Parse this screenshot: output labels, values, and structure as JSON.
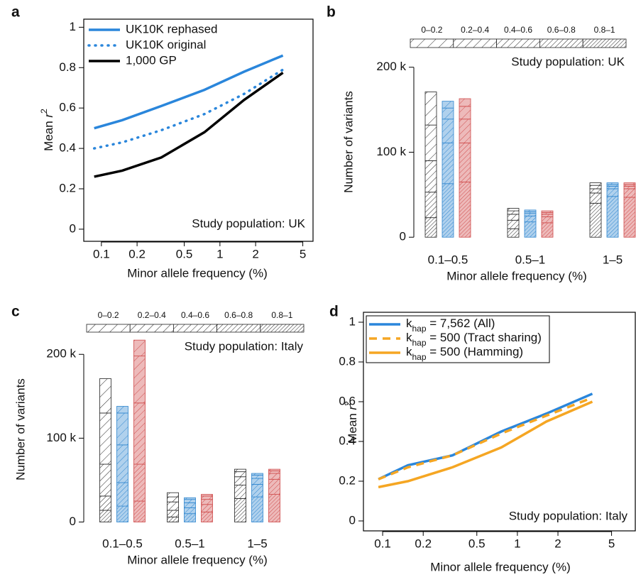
{
  "chart_data": [
    {
      "panel": "a",
      "type": "line",
      "log_x": true,
      "legend": "top-left",
      "xlabel": "Minor allele frequency (%)",
      "ylabel": [
        "Mean ",
        "r",
        "2"
      ],
      "annotation": "Study population: UK",
      "x": [
        0.087,
        0.15,
        0.32,
        0.74,
        1.6,
        3.4
      ],
      "xlim": [
        0.071,
        6.1
      ],
      "xticks": [
        0.1,
        0.2,
        0.5,
        1,
        2,
        5
      ],
      "ylim": [
        -0.06,
        1.04
      ],
      "yticks": [
        0,
        0.2,
        0.4,
        0.6,
        0.8,
        1
      ],
      "series": [
        {
          "name": "UK10K rephased",
          "color": "#2a86db",
          "style": "solid",
          "values": [
            0.5,
            0.54,
            0.61,
            0.69,
            0.78,
            0.86
          ]
        },
        {
          "name": "UK10K original",
          "color": "#2a86db",
          "style": "dotted",
          "values": [
            0.4,
            0.43,
            0.49,
            0.57,
            0.67,
            0.79
          ]
        },
        {
          "name": "1,000 GP",
          "color": "#000000",
          "style": "solid",
          "values": [
            0.26,
            0.29,
            0.355,
            0.48,
            0.64,
            0.775
          ]
        }
      ]
    },
    {
      "panel": "b",
      "type": "stacked_bar",
      "xlabel": "Minor allele frequency (%)",
      "ylabel": "Number of variants",
      "annotation": "Study population: UK",
      "categories": [
        "0.1–0.5",
        "0.5–1",
        "1–5"
      ],
      "group_colors": [
        "#222222",
        "#2f86cf",
        "#cf4a4a"
      ],
      "ylim": [
        -9000,
        229000
      ],
      "yticks": [
        0,
        {
          "value": 100000,
          "label": "100 k"
        },
        {
          "value": 200000,
          "label": "200 k"
        }
      ],
      "series": [
        {
          "name": "0–0.2",
          "values": [
            [
              39000,
              8000,
              9000
            ],
            [
              3000,
              2000,
              2000
            ],
            [
              3000,
              2000,
              2000
            ]
          ]
        },
        {
          "name": "0.2–0.4",
          "values": [
            [
              42000,
              13000,
              15000
            ],
            [
              4000,
              2000,
              2000
            ],
            [
              4000,
              2000,
              2000
            ]
          ]
        },
        {
          "name": "0.4–0.6",
          "values": [
            [
              37000,
              28000,
              28000
            ],
            [
              7000,
              3000,
              3000
            ],
            [
              5000,
              3000,
              3000
            ]
          ]
        },
        {
          "name": "0.6–0.8",
          "values": [
            [
              30000,
              48000,
              46000
            ],
            [
              10000,
              7000,
              7000
            ],
            [
              12000,
              9000,
              10000
            ]
          ]
        },
        {
          "name": "0.8–1",
          "values": [
            [
              23000,
              63000,
              65000
            ],
            [
              10000,
              18000,
              17000
            ],
            [
              40000,
              48000,
              47000
            ]
          ]
        }
      ]
    },
    {
      "panel": "c",
      "type": "stacked_bar",
      "xlabel": "Minor allele frequency (%)",
      "ylabel": "Number of variants",
      "annotation": "Study population: Italy",
      "categories": [
        "0.1–0.5",
        "0.5–1",
        "1–5"
      ],
      "group_colors": [
        "#222222",
        "#2f86cf",
        "#cf4a4a"
      ],
      "ylim": [
        -8000,
        229000
      ],
      "yticks": [
        0,
        {
          "value": 100000,
          "label": "100 k"
        },
        {
          "value": 200000,
          "label": "200 k"
        }
      ],
      "series": [
        {
          "name": "0–0.2",
          "values": [
            [
              41000,
              8000,
              19000
            ],
            [
              5000,
              2000,
              2000
            ],
            [
              3000,
              2000,
              2000
            ]
          ]
        },
        {
          "name": "0.2–0.4",
          "values": [
            [
              61000,
              38000,
              56000
            ],
            [
              6000,
              4000,
              4000
            ],
            [
              6000,
              4000,
              3000
            ]
          ]
        },
        {
          "name": "0.4–0.6",
          "values": [
            [
              38000,
              45000,
              73000
            ],
            [
              10000,
              6000,
              6000
            ],
            [
              10000,
              7000,
              7000
            ]
          ]
        },
        {
          "name": "0.6–0.8",
          "values": [
            [
              17000,
              28000,
              44000
            ],
            [
              8000,
              7000,
              9000
            ],
            [
              16000,
              15000,
              18000
            ]
          ]
        },
        {
          "name": "0.8–1",
          "values": [
            [
              14000,
              19000,
              25000
            ],
            [
              6000,
              10000,
              12000
            ],
            [
              28000,
              30000,
              33000
            ]
          ]
        }
      ]
    },
    {
      "panel": "d",
      "type": "line",
      "log_x": true,
      "legend": "top-left",
      "xlabel": "Minor allele frequency (%)",
      "ylabel": [
        "Mean ",
        "r",
        "2"
      ],
      "annotation": "Study population: Italy",
      "x": [
        0.093,
        0.154,
        0.33,
        0.76,
        1.64,
        3.6
      ],
      "xlim": [
        0.072,
        7.5
      ],
      "xticks": [
        0.1,
        0.2,
        0.5,
        1,
        2,
        5
      ],
      "ylim": [
        -0.05,
        1.05
      ],
      "yticks": [
        0,
        0.2,
        0.4,
        0.6,
        0.8,
        1
      ],
      "series": [
        {
          "name": [
            "k",
            "hap",
            " = 7,562 (All)"
          ],
          "color": "#2a86db",
          "style": "solid",
          "values": [
            0.21,
            0.28,
            0.33,
            0.45,
            0.54,
            0.64
          ]
        },
        {
          "name": [
            "k",
            "hap",
            " = 500 (Tract sharing)"
          ],
          "color": "#f5a623",
          "style": "dashed",
          "values": [
            0.21,
            0.27,
            0.33,
            0.44,
            0.53,
            0.62
          ]
        },
        {
          "name": [
            "k",
            "hap",
            " = 500 (Hamming)"
          ],
          "color": "#f5a623",
          "style": "solid",
          "values": [
            0.17,
            0.2,
            0.27,
            0.37,
            0.5,
            0.6
          ]
        }
      ]
    }
  ]
}
